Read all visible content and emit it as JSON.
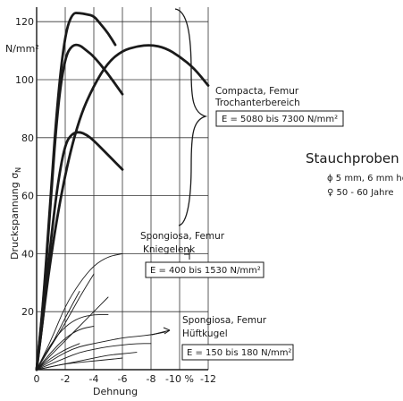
{
  "chart_data": {
    "type": "line",
    "xlabel": "Dehnung",
    "ylabel": "Druckspannung σ",
    "ylabel_subscript": "N",
    "y_unit": "N/mm²",
    "xlim": [
      0,
      -12
    ],
    "ylim": [
      0,
      125
    ],
    "x_tick_values": [
      0,
      -2,
      -4,
      -6,
      -8,
      -10,
      -12
    ],
    "x_tick_labels": [
      "0",
      "-2",
      "-4",
      "-6",
      "-8",
      "-10 %",
      "-12"
    ],
    "y_tick_values": [
      20,
      40,
      60,
      80,
      100,
      120
    ],
    "y_tick_labels": [
      "20",
      "40",
      "60",
      "80",
      "100",
      "120"
    ],
    "grid": true,
    "series": [
      {
        "group": "compacta",
        "x": [
          0,
          -0.5,
          -1,
          -1.5,
          -2,
          -2.5,
          -3,
          -3.5,
          -4,
          -4.5,
          -5,
          -5.5
        ],
        "y": [
          0,
          25,
          62,
          95,
          116,
          123,
          123,
          122.5,
          122,
          119,
          116,
          112
        ]
      },
      {
        "group": "compacta",
        "x": [
          0,
          -0.5,
          -1,
          -1.5,
          -2,
          -2.5,
          -3,
          -3.5,
          -4,
          -5,
          -6
        ],
        "y": [
          0,
          24,
          60,
          92,
          108,
          112,
          112,
          110,
          108,
          102,
          95
        ]
      },
      {
        "group": "compacta",
        "x": [
          0,
          -1,
          -2,
          -3,
          -4,
          -5,
          -6,
          -7,
          -8,
          -9,
          -10,
          -11,
          -12
        ],
        "y": [
          0,
          40,
          68,
          87,
          98,
          106,
          110,
          111.5,
          112,
          111,
          108,
          104,
          98
        ]
      },
      {
        "group": "compacta",
        "x": [
          0,
          -0.5,
          -1,
          -1.5,
          -2,
          -2.5,
          -3,
          -3.5,
          -4,
          -5,
          -6
        ],
        "y": [
          0,
          20,
          45,
          65,
          78,
          81.5,
          82,
          81,
          79,
          74,
          69
        ]
      },
      {
        "group": "spongiosa-knie",
        "x": [
          0,
          -1,
          -2,
          -3,
          -4,
          -5,
          -6
        ],
        "y": [
          0,
          10,
          22,
          30,
          36,
          39,
          40
        ]
      },
      {
        "group": "spongiosa-knie",
        "x": [
          0,
          -1,
          -2,
          -3,
          -4
        ],
        "y": [
          0,
          8,
          16,
          25,
          33
        ]
      },
      {
        "group": "spongiosa-knie",
        "x": [
          0,
          -1,
          -2,
          -3
        ],
        "y": [
          0,
          8,
          18,
          27
        ]
      },
      {
        "group": "spongiosa-knie",
        "x": [
          0,
          -1,
          -2,
          -3,
          -4,
          -5
        ],
        "y": [
          0,
          5,
          10,
          15,
          20,
          25
        ]
      },
      {
        "group": "spongiosa-knie",
        "x": [
          0,
          -1,
          -2,
          -3,
          -4,
          -5
        ],
        "y": [
          0,
          9,
          15,
          18,
          19,
          19
        ]
      },
      {
        "group": "spongiosa-knie",
        "x": [
          0,
          -1,
          -2,
          -3,
          -4
        ],
        "y": [
          0,
          6,
          11,
          14,
          15
        ]
      },
      {
        "group": "spongiosa-knie",
        "x": [
          0,
          -1,
          -2,
          -3
        ],
        "y": [
          0,
          4,
          7,
          9
        ]
      },
      {
        "group": "spongiosa-hueft",
        "x": [
          0,
          -1,
          -2,
          -3,
          -4,
          -5,
          -6,
          -7,
          -8,
          -9
        ],
        "y": [
          0,
          3,
          6,
          8,
          9,
          10,
          11,
          11.5,
          12,
          13
        ]
      },
      {
        "group": "spongiosa-hueft",
        "x": [
          0,
          -1,
          -2,
          -3,
          -4,
          -5,
          -6,
          -7,
          -8
        ],
        "y": [
          0,
          2,
          4,
          6,
          7,
          8,
          8.5,
          9,
          9
        ]
      },
      {
        "group": "spongiosa-hueft",
        "x": [
          0,
          -1,
          -2,
          -3,
          -4,
          -5,
          -6,
          -7
        ],
        "y": [
          0,
          1,
          2,
          3,
          4,
          5,
          5.5,
          6
        ]
      },
      {
        "group": "spongiosa-hueft",
        "x": [
          0,
          -1,
          -2,
          -3,
          -4,
          -5,
          -6
        ],
        "y": [
          0,
          1,
          2,
          2.5,
          3,
          3.5,
          4
        ]
      }
    ]
  },
  "annotations": {
    "compacta_title": "Compacta, Femur",
    "compacta_sub": "Trochanterbereich",
    "compacta_e": "E = 5080 bis 7300 N/mm²",
    "knie_title": "Spongiosa, Femur",
    "knie_sub": "Kniegelenk",
    "knie_e": "E = 400 bis 1530 N/mm²",
    "hueft_title": "Spongiosa, Femur",
    "hueft_sub": "Hüftkugel",
    "hueft_e": "E = 150 bis 180 N/mm²",
    "stauch_title": "Stauchproben",
    "stauch_dims": "ϕ 5 mm, 6 mm hoch",
    "stauch_age": "♀  50 - 60 Jahre"
  },
  "colors": {
    "ink": "#1a1a1a",
    "grid": "#333333",
    "background": "#ffffff"
  }
}
